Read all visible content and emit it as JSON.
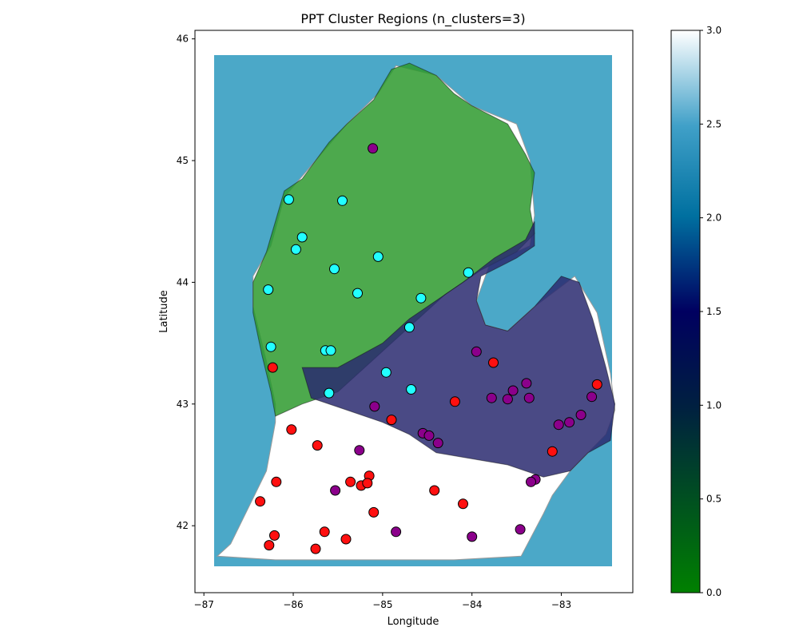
{
  "chart_data": {
    "type": "scatter",
    "title": "PPT Cluster Regions (n_clusters=3)",
    "xlabel": "Longitude",
    "ylabel": "Latitude",
    "xlim": [
      -87.1,
      -82.2
    ],
    "ylim": [
      41.45,
      46.07
    ],
    "xticks": [
      -87,
      -86,
      -85,
      -84,
      -83
    ],
    "xtick_labels": [
      "−87",
      "−86",
      "−85",
      "−84",
      "−83"
    ],
    "yticks": [
      42,
      43,
      44,
      45,
      46
    ],
    "ytick_labels": [
      "42",
      "43",
      "44",
      "45",
      "46"
    ],
    "grid": false,
    "colors": {
      "water": "#4ba8c8",
      "cluster0_fill": "#2e9a2e",
      "cluster1_fill": "#2a2a70",
      "cluster2_fill": "#ffffff",
      "cyan_points": "#22ffff",
      "purple_points": "#8b008b",
      "red_points": "#ff1010"
    },
    "colorbar": {
      "range": [
        0.0,
        3.0
      ],
      "ticks": [
        0.0,
        0.5,
        1.0,
        1.5,
        2.0,
        2.5,
        3.0
      ],
      "tick_labels": [
        "0.0",
        "0.5",
        "1.0",
        "1.5",
        "2.0",
        "2.5",
        "3.0"
      ],
      "colormap": "ocean"
    },
    "regions": [
      {
        "cluster": "green",
        "color": "#2e9a2e",
        "outline": [
          [
            -86.2,
            42.9
          ],
          [
            -86.25,
            43.1
          ],
          [
            -86.35,
            43.4
          ],
          [
            -86.45,
            43.75
          ],
          [
            -86.45,
            44.0
          ],
          [
            -86.3,
            44.25
          ],
          [
            -86.2,
            44.5
          ],
          [
            -86.1,
            44.75
          ],
          [
            -85.9,
            44.85
          ],
          [
            -85.75,
            45.0
          ],
          [
            -85.6,
            45.15
          ],
          [
            -85.4,
            45.3
          ],
          [
            -85.1,
            45.5
          ],
          [
            -84.9,
            45.75
          ],
          [
            -84.7,
            45.8
          ],
          [
            -84.4,
            45.7
          ],
          [
            -84.2,
            45.55
          ],
          [
            -84.0,
            45.45
          ],
          [
            -83.6,
            45.3
          ],
          [
            -83.4,
            45.05
          ],
          [
            -83.3,
            44.9
          ],
          [
            -83.35,
            44.6
          ],
          [
            -83.3,
            44.4
          ],
          [
            -83.5,
            44.25
          ],
          [
            -83.9,
            44.1
          ],
          [
            -84.3,
            43.9
          ],
          [
            -84.6,
            43.7
          ],
          [
            -84.9,
            43.5
          ],
          [
            -85.2,
            43.3
          ],
          [
            -85.5,
            43.1
          ],
          [
            -85.9,
            43.0
          ]
        ]
      },
      {
        "cluster": "purple",
        "color": "#2a2a70",
        "outline": [
          [
            -85.9,
            43.3
          ],
          [
            -85.5,
            43.3
          ],
          [
            -85.0,
            43.5
          ],
          [
            -84.7,
            43.7
          ],
          [
            -84.4,
            43.85
          ],
          [
            -84.1,
            44.0
          ],
          [
            -83.75,
            44.2
          ],
          [
            -83.4,
            44.35
          ],
          [
            -83.3,
            44.5
          ],
          [
            -83.3,
            44.3
          ],
          [
            -83.5,
            44.2
          ],
          [
            -83.9,
            44.05
          ],
          [
            -83.95,
            43.85
          ],
          [
            -83.85,
            43.65
          ],
          [
            -83.6,
            43.6
          ],
          [
            -83.3,
            43.8
          ],
          [
            -83.0,
            44.05
          ],
          [
            -82.8,
            44.0
          ],
          [
            -82.65,
            43.7
          ],
          [
            -82.5,
            43.3
          ],
          [
            -82.4,
            43.0
          ],
          [
            -82.45,
            42.7
          ],
          [
            -82.7,
            42.6
          ],
          [
            -82.9,
            42.45
          ],
          [
            -83.2,
            42.4
          ],
          [
            -83.6,
            42.5
          ],
          [
            -84.0,
            42.55
          ],
          [
            -84.4,
            42.6
          ],
          [
            -84.7,
            42.75
          ],
          [
            -85.0,
            42.85
          ],
          [
            -85.4,
            42.95
          ],
          [
            -85.8,
            43.05
          ]
        ]
      }
    ],
    "series": [
      {
        "color": "#22ffff",
        "points": [
          [
            -86.05,
            44.68
          ],
          [
            -85.45,
            44.67
          ],
          [
            -85.9,
            44.37
          ],
          [
            -85.97,
            44.27
          ],
          [
            -85.05,
            44.21
          ],
          [
            -85.54,
            44.11
          ],
          [
            -84.04,
            44.08
          ],
          [
            -86.28,
            43.94
          ],
          [
            -85.28,
            43.91
          ],
          [
            -84.57,
            43.87
          ],
          [
            -84.7,
            43.63
          ],
          [
            -86.25,
            43.47
          ],
          [
            -85.64,
            43.44
          ],
          [
            -85.58,
            43.44
          ],
          [
            -84.96,
            43.26
          ],
          [
            -84.68,
            43.12
          ],
          [
            -85.6,
            43.09
          ]
        ]
      },
      {
        "color": "#8b008b",
        "points": [
          [
            -85.11,
            45.1
          ],
          [
            -83.95,
            43.43
          ],
          [
            -83.39,
            43.17
          ],
          [
            -83.54,
            43.11
          ],
          [
            -83.78,
            43.05
          ],
          [
            -83.6,
            43.04
          ],
          [
            -83.36,
            43.05
          ],
          [
            -82.66,
            43.06
          ],
          [
            -85.09,
            42.98
          ],
          [
            -83.03,
            42.83
          ],
          [
            -82.91,
            42.85
          ],
          [
            -82.78,
            42.91
          ],
          [
            -84.55,
            42.76
          ],
          [
            -84.48,
            42.74
          ],
          [
            -84.38,
            42.68
          ],
          [
            -85.26,
            42.62
          ],
          [
            -83.29,
            42.38
          ],
          [
            -83.34,
            42.36
          ],
          [
            -85.53,
            42.29
          ],
          [
            -84.85,
            41.95
          ],
          [
            -84.0,
            41.91
          ],
          [
            -83.46,
            41.97
          ]
        ]
      },
      {
        "color": "#ff1010",
        "points": [
          [
            -86.23,
            43.3
          ],
          [
            -83.76,
            43.34
          ],
          [
            -82.6,
            43.16
          ],
          [
            -84.19,
            43.02
          ],
          [
            -84.9,
            42.87
          ],
          [
            -86.02,
            42.79
          ],
          [
            -85.73,
            42.66
          ],
          [
            -83.1,
            42.61
          ],
          [
            -85.15,
            42.41
          ],
          [
            -86.19,
            42.36
          ],
          [
            -85.36,
            42.36
          ],
          [
            -85.24,
            42.33
          ],
          [
            -85.17,
            42.35
          ],
          [
            -84.42,
            42.29
          ],
          [
            -86.37,
            42.2
          ],
          [
            -84.1,
            42.18
          ],
          [
            -85.1,
            42.11
          ],
          [
            -86.21,
            41.92
          ],
          [
            -85.65,
            41.95
          ],
          [
            -85.41,
            41.89
          ],
          [
            -86.27,
            41.84
          ],
          [
            -85.75,
            41.81
          ]
        ]
      }
    ]
  }
}
